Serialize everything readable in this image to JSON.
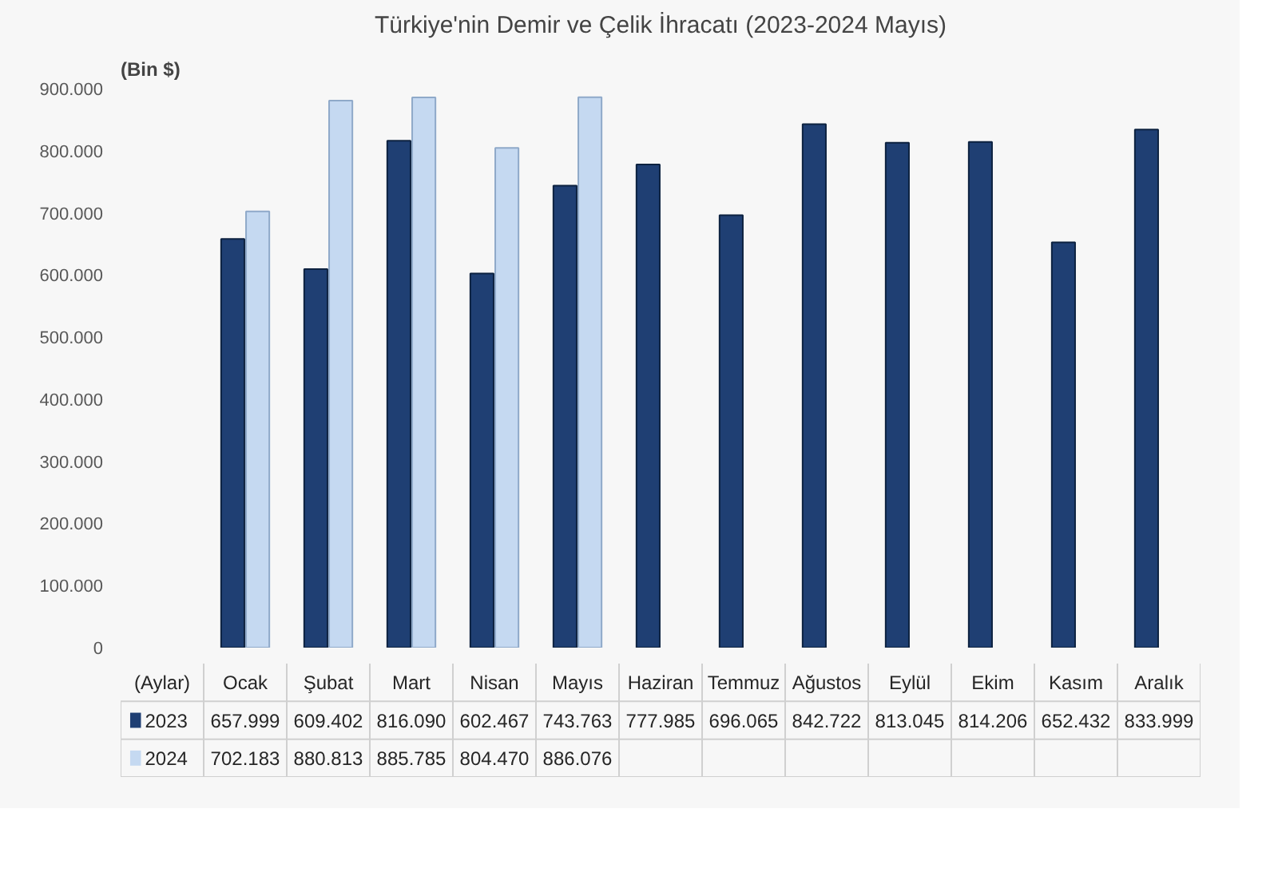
{
  "chart_data": {
    "type": "bar",
    "title": "Türkiye'nin Demir ve Çelik İhracatı (2023-2024 Mayıs)",
    "ylabel": "(Bin $)",
    "xlabel": "(Aylar)",
    "categories": [
      "Ocak",
      "Şubat",
      "Mart",
      "Nisan",
      "Mayıs",
      "Haziran",
      "Temmuz",
      "Ağustos",
      "Eylül",
      "Ekim",
      "Kasım",
      "Aralık"
    ],
    "series": [
      {
        "name": "2023",
        "color": "#1f3f73",
        "values": [
          657999,
          609402,
          816090,
          602467,
          743763,
          777985,
          696065,
          842722,
          813045,
          814206,
          652432,
          833999
        ],
        "value_labels": [
          "657.999",
          "609.402",
          "816.090",
          "602.467",
          "743.763",
          "777.985",
          "696.065",
          "842.722",
          "813.045",
          "814.206",
          "652.432",
          "833.999"
        ]
      },
      {
        "name": "2024",
        "color": "#c5d9f1",
        "values": [
          702183,
          880813,
          885785,
          804470,
          886076,
          null,
          null,
          null,
          null,
          null,
          null,
          null
        ],
        "value_labels": [
          "702.183",
          "880.813",
          "885.785",
          "804.470",
          "886.076",
          null,
          null,
          null,
          null,
          null,
          null,
          null
        ]
      }
    ],
    "ylim": [
      0,
      900000
    ],
    "yticks": [
      {
        "value": 0,
        "label": "0"
      },
      {
        "value": 100000,
        "label": "100.000"
      },
      {
        "value": 200000,
        "label": "200.000"
      },
      {
        "value": 300000,
        "label": "300.000"
      },
      {
        "value": 400000,
        "label": "400.000"
      },
      {
        "value": 500000,
        "label": "500.000"
      },
      {
        "value": 600000,
        "label": "600.000"
      },
      {
        "value": 700000,
        "label": "700.000"
      },
      {
        "value": 800000,
        "label": "800.000"
      },
      {
        "value": 900000,
        "label": "900.000"
      }
    ],
    "grid": false,
    "legend": "bottom"
  }
}
